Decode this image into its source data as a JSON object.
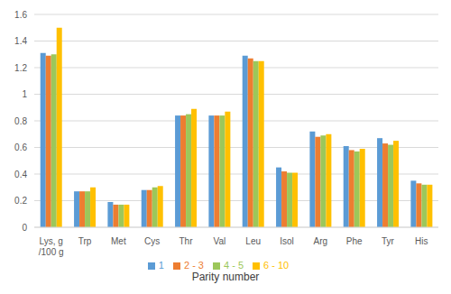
{
  "chart_data": {
    "type": "bar",
    "x_label": "Parity number",
    "categories": [
      "Lys, g /100 g",
      "Trp",
      "Met",
      "Cys",
      "Thr",
      "Val",
      "Leu",
      "Isol",
      "Arg",
      "Phe",
      "Tyr",
      "His"
    ],
    "series": [
      {
        "name": "1",
        "color": "#5b9bd5",
        "values": [
          1.31,
          0.27,
          0.19,
          0.28,
          0.84,
          0.84,
          1.29,
          0.45,
          0.72,
          0.61,
          0.67,
          0.35
        ]
      },
      {
        "name": "2 - 3",
        "color": "#ed7d31",
        "values": [
          1.29,
          0.27,
          0.17,
          0.28,
          0.84,
          0.84,
          1.27,
          0.42,
          0.68,
          0.58,
          0.63,
          0.33
        ]
      },
      {
        "name": "4 - 5",
        "color": "#9cc75a",
        "values": [
          1.3,
          0.27,
          0.17,
          0.3,
          0.85,
          0.84,
          1.25,
          0.41,
          0.69,
          0.57,
          0.62,
          0.32
        ]
      },
      {
        "name": "6 - 10",
        "color": "#ffc000",
        "values": [
          1.5,
          0.3,
          0.17,
          0.31,
          0.89,
          0.87,
          1.25,
          0.41,
          0.7,
          0.59,
          0.65,
          0.32
        ]
      }
    ],
    "ylim": [
      0,
      1.6
    ],
    "yticks": [
      0,
      0.2,
      0.4,
      0.6,
      0.8,
      1,
      1.2,
      1.4,
      1.6
    ],
    "grid": true,
    "legend": "bottom"
  }
}
